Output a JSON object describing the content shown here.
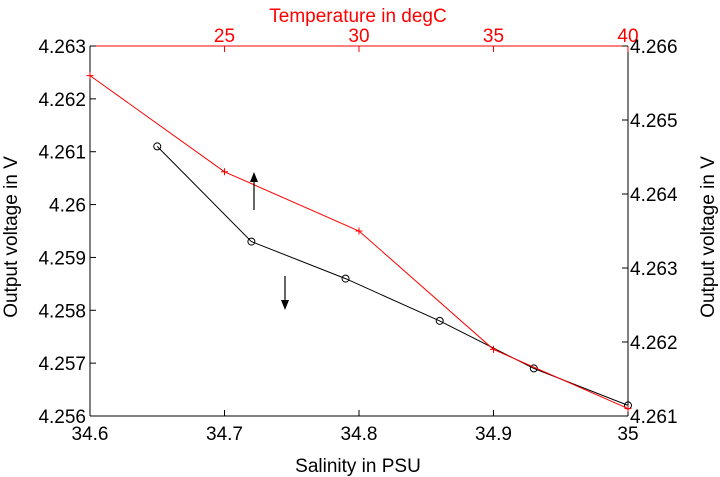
{
  "chart_data": {
    "type": "line",
    "title": "",
    "bottom_axis": {
      "label": "Salinity in PSU",
      "range": [
        34.6,
        35.0
      ],
      "ticks": [
        "34.6",
        "34.7",
        "34.8",
        "34.9",
        "35"
      ]
    },
    "left_axis": {
      "label": "Output voltage in V",
      "range": [
        4.256,
        4.263
      ],
      "ticks": [
        "4.256",
        "4.257",
        "4.258",
        "4.259",
        "4.26",
        "4.261",
        "4.262",
        "4.263"
      ]
    },
    "top_axis": {
      "label": "Temperature in degC",
      "range": [
        20,
        40
      ],
      "ticks": [
        "25",
        "30",
        "35",
        "40"
      ],
      "color": "#ff0000"
    },
    "right_axis": {
      "label": "Output voltage in V",
      "range": [
        4.261,
        4.266
      ],
      "ticks": [
        "4.261",
        "4.262",
        "4.263",
        "4.264",
        "4.265",
        "4.266"
      ]
    },
    "series": [
      {
        "axes": [
          "bottom",
          "left"
        ],
        "color": "#000000",
        "marker": "circle",
        "x": [
          34.65,
          34.72,
          34.79,
          34.86,
          34.93,
          35.0
        ],
        "y": [
          4.2611,
          4.2593,
          4.2586,
          4.2578,
          4.2569,
          4.2562
        ]
      },
      {
        "axes": [
          "top",
          "right"
        ],
        "color": "#ff0000",
        "marker": "plus",
        "x": [
          20,
          25,
          30,
          35,
          40
        ],
        "y": [
          4.2656,
          4.2643,
          4.2635,
          4.2619,
          4.2611
        ]
      }
    ],
    "annotations": [
      {
        "type": "arrow",
        "direction": "up",
        "applies_to_axes": [
          "top",
          "right"
        ]
      },
      {
        "type": "arrow",
        "direction": "down",
        "applies_to_axes": [
          "bottom",
          "left"
        ]
      }
    ],
    "grid": false,
    "legend": "none"
  }
}
